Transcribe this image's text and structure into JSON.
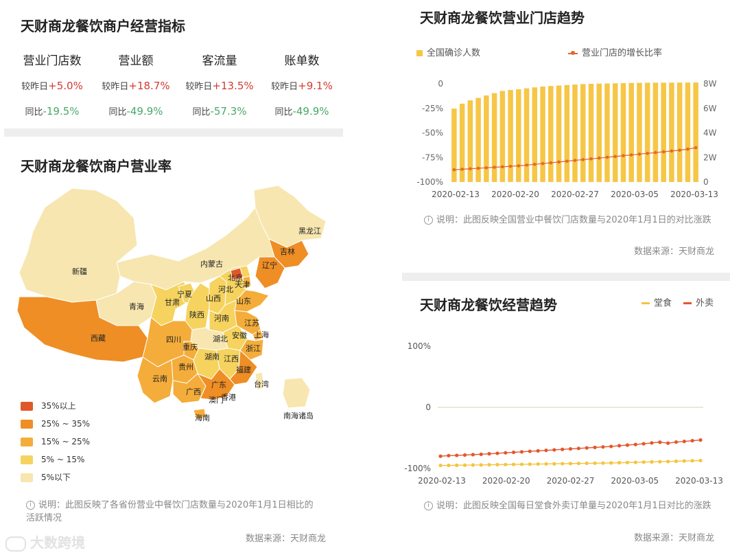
{
  "indicators": {
    "title": "天财商龙餐饮商户经营指标",
    "metrics": [
      {
        "label": "营业门店数",
        "dod_prefix": "较昨日",
        "dod": "+5.0%",
        "yoy_prefix": "同比",
        "yoy": "-19.5%"
      },
      {
        "label": "营业额",
        "dod_prefix": "较昨日",
        "dod": "+18.7%",
        "yoy_prefix": "同比",
        "yoy": "-49.9%"
      },
      {
        "label": "客流量",
        "dod_prefix": "较昨日",
        "dod": "+13.5%",
        "yoy_prefix": "同比",
        "yoy": "-57.3%"
      },
      {
        "label": "账单数",
        "dod_prefix": "较昨日",
        "dod": "+9.1%",
        "yoy_prefix": "同比",
        "yoy": "-49.9%"
      }
    ],
    "colors": {
      "up": "#d23a32",
      "down": "#48a868"
    }
  },
  "map": {
    "title": "天财商龙餐饮商户营业率",
    "note_icon": "info-icon",
    "note": "说明：此图反映了各省份营业中餐饮门店数量与2020年1月1日相比的活跃情况",
    "source": "数据来源：天财商龙",
    "legend": [
      {
        "label": "35%以上",
        "color": "#e0582a"
      },
      {
        "label": "25% ~ 35%",
        "color": "#ee8e25"
      },
      {
        "label": "15% ~ 25%",
        "color": "#f4ad3a"
      },
      {
        "label": "5% ~ 15%",
        "color": "#f5d35e"
      },
      {
        "label": "5%以下",
        "color": "#f7e6b0"
      }
    ],
    "provinces": [
      {
        "name": "黑龙江",
        "level": 4
      },
      {
        "name": "吉林",
        "level": 1
      },
      {
        "name": "辽宁",
        "level": 1
      },
      {
        "name": "内蒙古",
        "level": 4
      },
      {
        "name": "北京",
        "level": 0
      },
      {
        "name": "天津",
        "level": 2
      },
      {
        "name": "河北",
        "level": 3
      },
      {
        "name": "山西",
        "level": 3
      },
      {
        "name": "山东",
        "level": 2
      },
      {
        "name": "新疆",
        "level": 4
      },
      {
        "name": "宁夏",
        "level": 3
      },
      {
        "name": "甘肃",
        "level": 3
      },
      {
        "name": "青海",
        "level": 4
      },
      {
        "name": "陕西",
        "level": 3
      },
      {
        "name": "河南",
        "level": 3
      },
      {
        "name": "江苏",
        "level": 2
      },
      {
        "name": "安徽",
        "level": 3
      },
      {
        "name": "上海",
        "level": 2
      },
      {
        "name": "湖北",
        "level": 4
      },
      {
        "name": "西藏",
        "level": 1
      },
      {
        "name": "四川",
        "level": 2
      },
      {
        "name": "重庆",
        "level": 2
      },
      {
        "name": "浙江",
        "level": 2
      },
      {
        "name": "湖南",
        "level": 3
      },
      {
        "name": "江西",
        "level": 3
      },
      {
        "name": "贵州",
        "level": 2
      },
      {
        "name": "福建",
        "level": 1
      },
      {
        "name": "云南",
        "level": 2
      },
      {
        "name": "台湾",
        "level": 4
      },
      {
        "name": "广西",
        "level": 2
      },
      {
        "name": "广东",
        "level": 1
      },
      {
        "name": "澳门",
        "level": 3
      },
      {
        "name": "香港",
        "level": 3
      },
      {
        "name": "海南",
        "level": 2
      },
      {
        "name": "南海诸岛",
        "level": 4
      }
    ]
  },
  "stores_trend": {
    "title": "天财商龙餐饮营业门店趋势",
    "legend_bar": "全国确诊人数",
    "legend_line": "营业门店的增长比率",
    "note": "说明：此图反映全国营业中餐饮门店数量与2020年1月1日的对比涨跌",
    "source": "数据来源：天财商龙"
  },
  "business_trend": {
    "title": "天财商龙餐饮经营趋势",
    "legend": [
      "堂食",
      "外卖"
    ],
    "note": "说明：此图反映全国每日堂食外卖订单量与2020年1月1日对比的涨跌",
    "source": "数据来源：天财商龙"
  },
  "watermark": "大数跨境",
  "chart_data": [
    {
      "type": "bar",
      "title": "天财商龙餐饮营业门店趋势",
      "x_ticks": [
        "2020-02-13",
        "2020-02-20",
        "2020-02-27",
        "2020-03-05",
        "2020-03-13"
      ],
      "x_start": "2020-02-13",
      "x_end": "2020-03-13",
      "y_left_ticks": [
        "0",
        "-25%",
        "-50%",
        "-75%",
        "-100%"
      ],
      "y_left_range": [
        -100,
        0
      ],
      "y_right_ticks": [
        "8W",
        "6W",
        "4W",
        "2W",
        "0"
      ],
      "y_right_range": [
        0,
        80000
      ],
      "series": [
        {
          "name": "全国确诊人数",
          "kind": "bar",
          "axis": "right",
          "color": "#f6c646",
          "values": [
            59800,
            63800,
            66500,
            68500,
            70500,
            72400,
            74200,
            75000,
            75500,
            76300,
            77100,
            77800,
            78200,
            78600,
            79000,
            79400,
            79800,
            80000,
            80150,
            80270,
            80400,
            80560,
            80700,
            80800,
            80860,
            80900,
            80920,
            80950,
            80980,
            81000,
            81050
          ]
        },
        {
          "name": "营业门店的增长比率",
          "kind": "line",
          "axis": "left",
          "color": "#e06a2e",
          "values": [
            -87.5,
            -87,
            -86.5,
            -86,
            -85.5,
            -85,
            -84.5,
            -84,
            -83.5,
            -82.8,
            -82,
            -81.2,
            -80.4,
            -79.6,
            -78.8,
            -78,
            -77.2,
            -76.4,
            -75.6,
            -74.8,
            -74,
            -73.2,
            -72.4,
            -71.6,
            -70.8,
            -70,
            -69.2,
            -68.4,
            -67.6,
            -66.5,
            -65
          ]
        }
      ]
    },
    {
      "type": "line",
      "title": "天财商龙餐饮经营趋势",
      "x_ticks": [
        "2020-02-13",
        "2020-02-20",
        "2020-02-27",
        "2020-03-05",
        "2020-03-13"
      ],
      "x_start": "2020-02-13",
      "x_end": "2020-03-13",
      "y_ticks": [
        "100%",
        "0",
        "-100%"
      ],
      "y_range": [
        -100,
        100
      ],
      "series": [
        {
          "name": "堂食",
          "color": "#f5c43c",
          "values": [
            -95,
            -95,
            -94.8,
            -94.6,
            -94.4,
            -94.2,
            -94,
            -93.8,
            -93.6,
            -93.4,
            -93.2,
            -93,
            -92.8,
            -92.6,
            -92.4,
            -92.2,
            -92,
            -91.8,
            -91.6,
            -91.4,
            -91.2,
            -91,
            -90.6,
            -90.3,
            -90,
            -89.6,
            -89.3,
            -89,
            -88.6,
            -88.2,
            -87.8,
            -87.4,
            -87
          ]
        },
        {
          "name": "外卖",
          "color": "#e3562c",
          "values": [
            -80,
            -79,
            -78.6,
            -78,
            -77.4,
            -76.8,
            -76,
            -75.2,
            -74.4,
            -73.6,
            -72.8,
            -72,
            -71.2,
            -70.4,
            -69.6,
            -68.8,
            -68,
            -67.2,
            -66.4,
            -65.6,
            -64.8,
            -64,
            -62.8,
            -61.8,
            -60.8,
            -59.6,
            -58.2,
            -57,
            -58.6,
            -56.8,
            -55.8,
            -54.6,
            -53.5
          ]
        }
      ]
    }
  ]
}
